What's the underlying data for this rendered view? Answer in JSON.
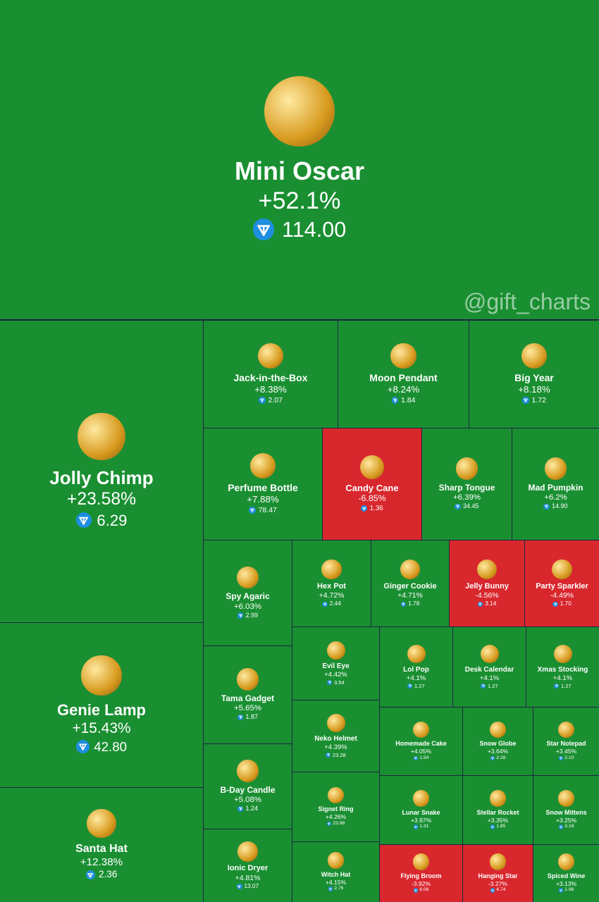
{
  "watermark": "@gift_charts",
  "tiles": [
    {
      "name": "Mini Oscar",
      "change": "+52.1%",
      "price": "114.00",
      "color": "#1a8f32"
    },
    {
      "name": "Jolly Chimp",
      "change": "+23.58%",
      "price": "6.29",
      "color": "#1a8f32"
    },
    {
      "name": "Genie Lamp",
      "change": "+15.43%",
      "price": "42.80",
      "color": "#1a8f32"
    },
    {
      "name": "Santa Hat",
      "change": "+12.38%",
      "price": "2.36",
      "color": "#1a8f32"
    },
    {
      "name": "Jack-in-the-Box",
      "change": "+8.38%",
      "price": "2.07",
      "color": "#1a8f32"
    },
    {
      "name": "Moon Pendant",
      "change": "+8.24%",
      "price": "1.84",
      "color": "#1a8f32"
    },
    {
      "name": "Big Year",
      "change": "+8.18%",
      "price": "1.72",
      "color": "#1a8f32"
    },
    {
      "name": "Perfume Bottle",
      "change": "+7.88%",
      "price": "78.47",
      "color": "#1a8f32"
    },
    {
      "name": "Candy Cane",
      "change": "-6.85%",
      "price": "1.36",
      "color": "#d9272e"
    },
    {
      "name": "Sharp Tongue",
      "change": "+6.39%",
      "price": "34.45",
      "color": "#1a8f32"
    },
    {
      "name": "Mad Pumpkin",
      "change": "+6.2%",
      "price": "14.90",
      "color": "#1a8f32"
    },
    {
      "name": "Spy Agaric",
      "change": "+6.03%",
      "price": "2.99",
      "color": "#1a8f32"
    },
    {
      "name": "Hex Pot",
      "change": "+4.72%",
      "price": "2.44",
      "color": "#1a8f32"
    },
    {
      "name": "Ginger Cookie",
      "change": "+4.71%",
      "price": "1.78",
      "color": "#1a8f32"
    },
    {
      "name": "Jelly Bunny",
      "change": "-4.56%",
      "price": "3.14",
      "color": "#d9272e"
    },
    {
      "name": "Party Sparkler",
      "change": "-4.49%",
      "price": "1.70",
      "color": "#d9272e"
    },
    {
      "name": "Tama Gadget",
      "change": "+5.65%",
      "price": "1.87",
      "color": "#1a8f32"
    },
    {
      "name": "Evil Eye",
      "change": "+4.42%",
      "price": "3.54",
      "color": "#1a8f32"
    },
    {
      "name": "Lol Pop",
      "change": "+4.1%",
      "price": "1.27",
      "color": "#1a8f32"
    },
    {
      "name": "Desk Calendar",
      "change": "+4.1%",
      "price": "1.27",
      "color": "#1a8f32"
    },
    {
      "name": "Xmas Stocking",
      "change": "+4.1%",
      "price": "1.27",
      "color": "#1a8f32"
    },
    {
      "name": "Neko Helmet",
      "change": "+4.39%",
      "price": "23.28",
      "color": "#1a8f32"
    },
    {
      "name": "Homemade Cake",
      "change": "+4.05%",
      "price": "1.54",
      "color": "#1a8f32"
    },
    {
      "name": "Snow Globe",
      "change": "+3.64%",
      "price": "2.28",
      "color": "#1a8f32"
    },
    {
      "name": "Star Notepad",
      "change": "+3.45%",
      "price": "2.10",
      "color": "#1a8f32"
    },
    {
      "name": "B-Day Candle",
      "change": "+5.08%",
      "price": "1.24",
      "color": "#1a8f32"
    },
    {
      "name": "Signet Ring",
      "change": "+4.26%",
      "price": "23.98",
      "color": "#1a8f32"
    },
    {
      "name": "Lunar Snake",
      "change": "+3.97%",
      "price": "1.31",
      "color": "#1a8f32"
    },
    {
      "name": "Stellar Rocket",
      "change": "+3.35%",
      "price": "1.85",
      "color": "#1a8f32"
    },
    {
      "name": "Snow Mittens",
      "change": "+3.25%",
      "price": "3.18",
      "color": "#1a8f32"
    },
    {
      "name": "Ionic Dryer",
      "change": "+4.81%",
      "price": "13.07",
      "color": "#1a8f32"
    },
    {
      "name": "Witch Hat",
      "change": "+4.15%",
      "price": "2.76",
      "color": "#1a8f32"
    },
    {
      "name": "Flying Broom",
      "change": "-3.92%",
      "price": "8.08",
      "color": "#d9272e"
    },
    {
      "name": "Hanging Star",
      "change": "-3.27%",
      "price": "4.74",
      "color": "#d9272e"
    },
    {
      "name": "Spiced Wine",
      "change": "+3.13%",
      "price": "1.98",
      "color": "#1a8f32"
    }
  ]
}
